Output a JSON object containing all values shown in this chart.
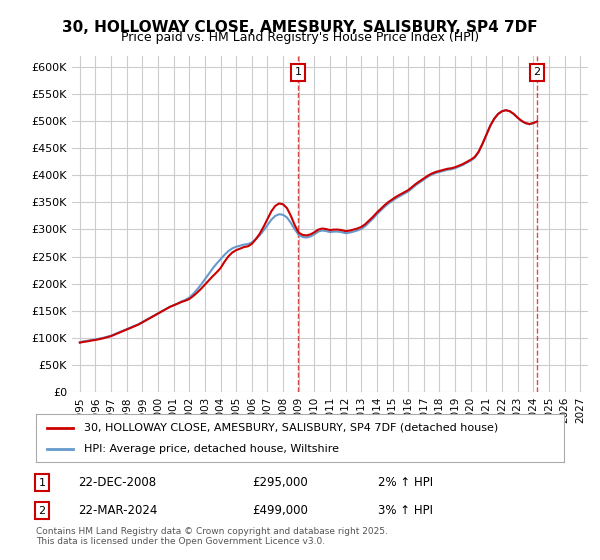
{
  "title": "30, HOLLOWAY CLOSE, AMESBURY, SALISBURY, SP4 7DF",
  "subtitle": "Price paid vs. HM Land Registry's House Price Index (HPI)",
  "ylabel_ticks": [
    0,
    50000,
    100000,
    150000,
    200000,
    250000,
    300000,
    350000,
    400000,
    450000,
    500000,
    550000,
    600000
  ],
  "ylabel_labels": [
    "£0",
    "£50K",
    "£100K",
    "£150K",
    "£200K",
    "£250K",
    "£300K",
    "£350K",
    "£400K",
    "£450K",
    "£500K",
    "£550K",
    "£600K"
  ],
  "xlim": [
    1994.5,
    2027.5
  ],
  "ylim": [
    0,
    620000
  ],
  "background_color": "#ffffff",
  "grid_color": "#cccccc",
  "line1_color": "#cc0000",
  "line2_color": "#6699cc",
  "vline1_x": 2008.97,
  "vline2_x": 2024.22,
  "marker1_label": "1",
  "marker2_label": "2",
  "marker1_y": 590000,
  "marker2_y": 590000,
  "annotation1": "22-DEC-2008",
  "annotation1_price": "£295,000",
  "annotation1_hpi": "2% ↑ HPI",
  "annotation2": "22-MAR-2024",
  "annotation2_price": "£499,000",
  "annotation2_hpi": "3% ↑ HPI",
  "legend1_label": "30, HOLLOWAY CLOSE, AMESBURY, SALISBURY, SP4 7DF (detached house)",
  "legend2_label": "HPI: Average price, detached house, Wiltshire",
  "footer": "Contains HM Land Registry data © Crown copyright and database right 2025.\nThis data is licensed under the Open Government Licence v3.0.",
  "xtick_years": [
    1995,
    1996,
    1997,
    1998,
    1999,
    2000,
    2001,
    2002,
    2003,
    2004,
    2005,
    2006,
    2007,
    2008,
    2009,
    2010,
    2011,
    2012,
    2013,
    2014,
    2015,
    2016,
    2017,
    2018,
    2019,
    2020,
    2021,
    2022,
    2023,
    2024,
    2025,
    2026,
    2027
  ],
  "hpi_x": [
    1995.0,
    1995.25,
    1995.5,
    1995.75,
    1996.0,
    1996.25,
    1996.5,
    1996.75,
    1997.0,
    1997.25,
    1997.5,
    1997.75,
    1998.0,
    1998.25,
    1998.5,
    1998.75,
    1999.0,
    1999.25,
    1999.5,
    1999.75,
    2000.0,
    2000.25,
    2000.5,
    2000.75,
    2001.0,
    2001.25,
    2001.5,
    2001.75,
    2002.0,
    2002.25,
    2002.5,
    2002.75,
    2003.0,
    2003.25,
    2003.5,
    2003.75,
    2004.0,
    2004.25,
    2004.5,
    2004.75,
    2005.0,
    2005.25,
    2005.5,
    2005.75,
    2006.0,
    2006.25,
    2006.5,
    2006.75,
    2007.0,
    2007.25,
    2007.5,
    2007.75,
    2008.0,
    2008.25,
    2008.5,
    2008.75,
    2009.0,
    2009.25,
    2009.5,
    2009.75,
    2010.0,
    2010.25,
    2010.5,
    2010.75,
    2011.0,
    2011.25,
    2011.5,
    2011.75,
    2012.0,
    2012.25,
    2012.5,
    2012.75,
    2013.0,
    2013.25,
    2013.5,
    2013.75,
    2014.0,
    2014.25,
    2014.5,
    2014.75,
    2015.0,
    2015.25,
    2015.5,
    2015.75,
    2016.0,
    2016.25,
    2016.5,
    2016.75,
    2017.0,
    2017.25,
    2017.5,
    2017.75,
    2018.0,
    2018.25,
    2018.5,
    2018.75,
    2019.0,
    2019.25,
    2019.5,
    2019.75,
    2020.0,
    2020.25,
    2020.5,
    2020.75,
    2021.0,
    2021.25,
    2021.5,
    2021.75,
    2022.0,
    2022.25,
    2022.5,
    2022.75,
    2023.0,
    2023.25,
    2023.5,
    2023.75,
    2024.0,
    2024.25
  ],
  "hpi_y": [
    92000,
    93500,
    94500,
    96000,
    97000,
    98500,
    100000,
    102000,
    104000,
    107000,
    110000,
    113000,
    116000,
    119000,
    122000,
    125000,
    129000,
    133000,
    137000,
    141000,
    145000,
    149000,
    153000,
    157000,
    160000,
    163000,
    167000,
    170000,
    174000,
    181000,
    189000,
    198000,
    208000,
    218000,
    228000,
    237000,
    245000,
    253000,
    260000,
    265000,
    268000,
    270000,
    272000,
    273000,
    276000,
    282000,
    289000,
    298000,
    308000,
    318000,
    325000,
    328000,
    327000,
    322000,
    312000,
    300000,
    290000,
    286000,
    285000,
    287000,
    291000,
    296000,
    298000,
    297000,
    295000,
    296000,
    296000,
    295000,
    293000,
    294000,
    296000,
    298000,
    301000,
    306000,
    313000,
    320000,
    328000,
    335000,
    342000,
    348000,
    353000,
    358000,
    362000,
    366000,
    370000,
    376000,
    382000,
    387000,
    392000,
    397000,
    401000,
    404000,
    406000,
    408000,
    410000,
    411000,
    413000,
    416000,
    419000,
    423000,
    427000,
    432000,
    442000,
    457000,
    474000,
    491000,
    504000,
    513000,
    518000,
    520000,
    518000,
    513000,
    506000,
    500000,
    496000,
    494000,
    496000,
    499000
  ],
  "price_x": [
    1995.75,
    2001.25,
    2003.92,
    2008.97,
    2024.22
  ],
  "price_y": [
    95000,
    163000,
    225000,
    295000,
    499000
  ]
}
